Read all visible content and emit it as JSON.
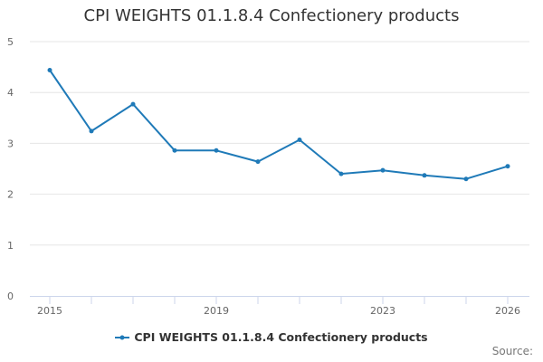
{
  "chart_data": {
    "type": "line",
    "title": "CPI WEIGHTS 01.1.8.4 Confectionery products",
    "xlabel": "",
    "ylabel": "",
    "x": [
      2015,
      2016,
      2017,
      2018,
      2019,
      2020,
      2021,
      2022,
      2023,
      2024,
      2025,
      2026
    ],
    "x_tick_labels": [
      "2015",
      "2019",
      "2023",
      "2026"
    ],
    "y_tick_labels": [
      "0",
      "1",
      "2",
      "3",
      "4",
      "5"
    ],
    "ylim": [
      0,
      5
    ],
    "grid": true,
    "legend_position": "bottom",
    "series": [
      {
        "name": "CPI WEIGHTS 01.1.8.4 Confectionery products",
        "color": "#1f7ab8",
        "values": [
          4.44,
          3.24,
          3.77,
          2.86,
          2.86,
          2.64,
          3.07,
          2.4,
          2.47,
          2.37,
          2.3,
          2.55
        ]
      }
    ],
    "source_label": "Source:"
  }
}
